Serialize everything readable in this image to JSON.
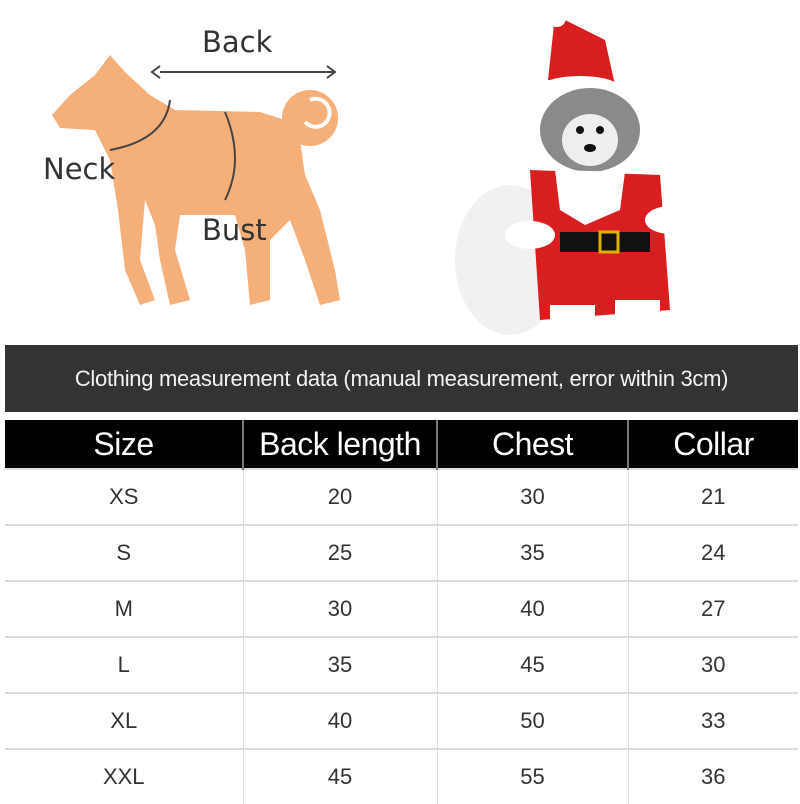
{
  "diagram": {
    "labels": {
      "back": "Back",
      "neck": "Neck",
      "bust": "Bust"
    },
    "silhouette_color": "#F5B07A"
  },
  "photo": {
    "subject": "dog-in-santa-costume",
    "costume_color": "#D81E1E"
  },
  "banner": {
    "text": "Clothing measurement data (manual measurement, error within 3cm)"
  },
  "table": {
    "headers": [
      "Size",
      "Back length",
      "Chest",
      "Collar"
    ],
    "rows": [
      [
        "XS",
        "20",
        "30",
        "21"
      ],
      [
        "S",
        "25",
        "35",
        "24"
      ],
      [
        "M",
        "30",
        "40",
        "27"
      ],
      [
        "L",
        "35",
        "45",
        "30"
      ],
      [
        "XL",
        "40",
        "50",
        "33"
      ],
      [
        "XXL",
        "45",
        "55",
        "36"
      ]
    ]
  }
}
